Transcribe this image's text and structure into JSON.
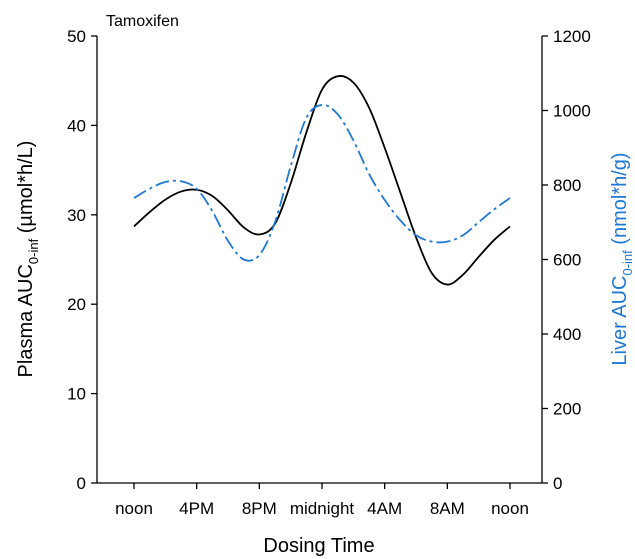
{
  "chart_data": {
    "type": "line",
    "title": "Tamoxifen",
    "xlabel": "Dosing Time",
    "x_tick_labels": [
      "noon",
      "4PM",
      "8PM",
      "midnight",
      "4AM",
      "8AM",
      "noon"
    ],
    "x_hours": [
      0,
      1,
      2,
      3,
      4,
      5,
      6,
      7,
      8,
      9,
      10,
      11,
      12,
      13,
      14,
      15,
      16,
      17,
      18,
      19,
      20,
      21,
      22,
      23,
      24
    ],
    "ylabel_left": {
      "prefix": "Plasma AUC",
      "sub": "0-inf",
      "suffix": " (µmol*h/L)"
    },
    "ylabel_right": {
      "prefix": "Liver AUC",
      "sub": "0-inf",
      "suffix": " (nmol*h/g)"
    },
    "ylim_left": [
      0,
      50
    ],
    "ylim_right": [
      0,
      1200
    ],
    "yticks_left": [
      0,
      10,
      20,
      30,
      40,
      50
    ],
    "yticks_right": [
      0,
      200,
      400,
      600,
      800,
      1000,
      1200
    ],
    "grid": false,
    "series": [
      {
        "axis": "left",
        "color": "#000000",
        "style": "solid",
        "values": [
          28.7,
          30.3,
          31.7,
          32.6,
          32.8,
          32.1,
          30.5,
          28.6,
          27.8,
          29.0,
          33.5,
          39.2,
          44.0,
          45.5,
          44.8,
          42.0,
          37.5,
          32.5,
          27.5,
          23.5,
          22.2,
          23.3,
          25.3,
          27.2,
          28.7
        ]
      },
      {
        "axis": "right",
        "color": "#1f78d4",
        "style": "dashdot",
        "values": [
          765,
          790,
          808,
          810,
          790,
          730,
          650,
          600,
          612,
          700,
          850,
          980,
          1015,
          990,
          920,
          830,
          760,
          705,
          665,
          648,
          648,
          665,
          700,
          735,
          765
        ]
      }
    ]
  }
}
